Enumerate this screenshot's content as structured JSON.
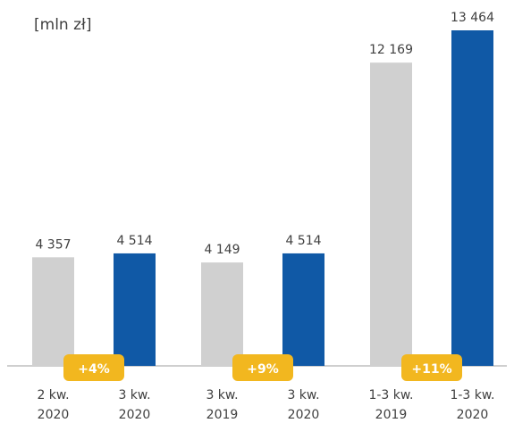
{
  "chart_data": {
    "type": "bar",
    "unit": "[mln zł]",
    "categories": [
      "2 kw.\n2020",
      "3 kw.\n2020",
      "3 kw.\n2019",
      "3 kw.\n2020",
      "1-3 kw.\n2019",
      "1-3 kw.\n2020"
    ],
    "values": [
      4357,
      4514,
      4149,
      4514,
      12169,
      13464
    ],
    "value_labels": [
      "4 357",
      "4 514",
      "4 149",
      "4 514",
      "12 169",
      "13 464"
    ],
    "groups": [
      {
        "bars": [
          0,
          1
        ],
        "change": "+4%"
      },
      {
        "bars": [
          2,
          3
        ],
        "change": "+9%"
      },
      {
        "bars": [
          4,
          5
        ],
        "change": "+11%"
      }
    ],
    "colors": {
      "previous": "#d0d0d0",
      "current": "#1059a6",
      "badge": "#f2b71f",
      "badge_text": "#ffffff",
      "text": "#404040",
      "axis": "#bfbfbf"
    },
    "ylim": [
      0,
      13464
    ],
    "grid": false,
    "legend": "none"
  }
}
